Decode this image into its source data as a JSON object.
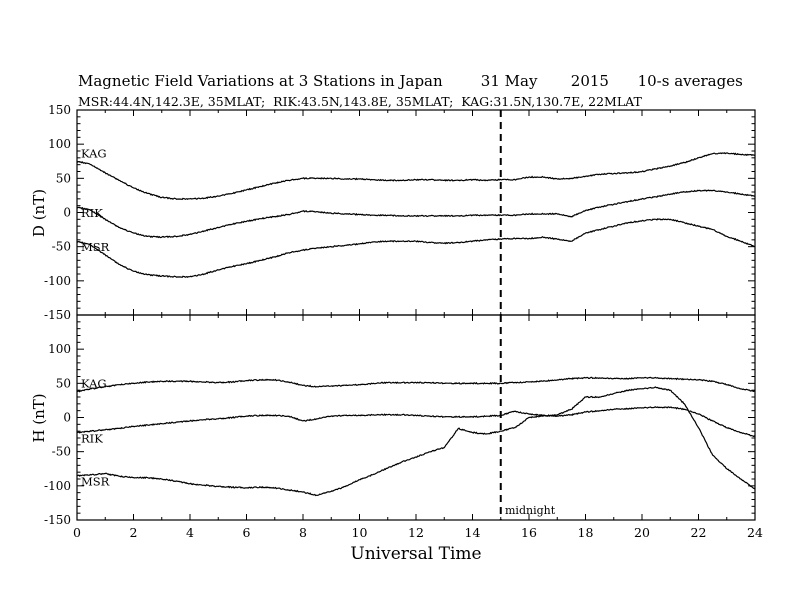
{
  "title": "Magnetic Field Variations at 3 Stations in Japan        31 May       2015      10-s averages",
  "subtitle": "MSR:44.4N,142.3E, 35MLAT;  RIK:43.5N,143.8E, 35MLAT;  KAG:31.5N,130.7E, 22MLAT",
  "chart_data": [
    {
      "type": "line",
      "ylabel": "D (nT)",
      "xlabel": "",
      "xlim": [
        0,
        24
      ],
      "ylim": [
        -150,
        150
      ],
      "yticks": [
        150,
        100,
        50,
        0,
        -50,
        -100,
        -150
      ],
      "series": [
        {
          "name": "KAG",
          "x": [
            0,
            0.5,
            1,
            1.5,
            2,
            2.5,
            3,
            3.5,
            4,
            4.5,
            5,
            5.5,
            6,
            6.5,
            7,
            7.5,
            8,
            8.5,
            9,
            9.5,
            10,
            10.5,
            11,
            11.5,
            12,
            12.5,
            13,
            13.5,
            14,
            14.5,
            15,
            15.5,
            16,
            16.5,
            17,
            17.5,
            18,
            18.5,
            19,
            19.5,
            20,
            20.5,
            21,
            21.5,
            22,
            22.5,
            23,
            23.5,
            24
          ],
          "y": [
            75,
            70,
            58,
            47,
            36,
            28,
            22,
            20,
            20,
            21,
            24,
            28,
            33,
            38,
            43,
            47,
            50,
            50,
            50,
            49,
            49,
            48,
            47,
            47,
            48,
            48,
            47,
            47,
            48,
            47,
            48,
            48,
            52,
            52,
            49,
            50,
            53,
            56,
            57,
            58,
            60,
            64,
            68,
            73,
            80,
            86,
            87,
            85,
            84
          ]
        },
        {
          "name": "RIK",
          "x": [
            0,
            0.5,
            1,
            1.5,
            2,
            2.5,
            3,
            3.5,
            4,
            4.5,
            5,
            5.5,
            6,
            6.5,
            7,
            7.5,
            8,
            8.5,
            9,
            9.5,
            10,
            10.5,
            11,
            11.5,
            12,
            12.5,
            13,
            13.5,
            14,
            14.5,
            15,
            15.5,
            16,
            16.5,
            17,
            17.5,
            18,
            18.5,
            19,
            19.5,
            20,
            20.5,
            21,
            21.5,
            22,
            22.5,
            23,
            23.5,
            24
          ],
          "y": [
            8,
            3,
            -10,
            -22,
            -30,
            -35,
            -36,
            -35,
            -32,
            -27,
            -22,
            -17,
            -13,
            -9,
            -6,
            -3,
            2,
            1,
            -1,
            -2,
            -3,
            -4,
            -4,
            -5,
            -5,
            -5,
            -5,
            -5,
            -4,
            -4,
            -4,
            -4,
            -2,
            -2,
            -2,
            -6,
            3,
            8,
            12,
            16,
            20,
            23,
            27,
            30,
            32,
            32,
            30,
            27,
            24
          ]
        },
        {
          "name": "MSR",
          "x": [
            0,
            0.5,
            1,
            1.5,
            2,
            2.5,
            3,
            3.5,
            4,
            4.5,
            5,
            5.5,
            6,
            6.5,
            7,
            7.5,
            8,
            8.5,
            9,
            9.5,
            10,
            10.5,
            11,
            11.5,
            12,
            12.5,
            13,
            13.5,
            14,
            14.5,
            15,
            15.5,
            16,
            16.5,
            17,
            17.5,
            18,
            18.5,
            19,
            19.5,
            20,
            20.5,
            21,
            21.5,
            22,
            22.5,
            23,
            23.5,
            24
          ],
          "y": [
            -42,
            -48,
            -62,
            -76,
            -86,
            -91,
            -93,
            -94,
            -94,
            -90,
            -84,
            -79,
            -75,
            -70,
            -65,
            -59,
            -55,
            -52,
            -50,
            -48,
            -46,
            -43,
            -42,
            -42,
            -42,
            -44,
            -45,
            -44,
            -42,
            -40,
            -39,
            -38,
            -38,
            -36,
            -39,
            -42,
            -30,
            -25,
            -20,
            -15,
            -12,
            -10,
            -10,
            -15,
            -20,
            -25,
            -35,
            -42,
            -50
          ]
        }
      ]
    },
    {
      "type": "line",
      "ylabel": "H (nT)",
      "xlabel": "Universal Time",
      "xlim": [
        0,
        24
      ],
      "ylim": [
        -150,
        150
      ],
      "yticks": [
        100,
        50,
        0,
        -50,
        -100,
        -150
      ],
      "xticks": [
        0,
        2,
        4,
        6,
        8,
        10,
        12,
        14,
        16,
        18,
        20,
        22,
        24
      ],
      "annotation": "midnight",
      "annotation_x": 15,
      "series": [
        {
          "name": "KAG",
          "x": [
            0,
            0.5,
            1,
            1.5,
            2,
            2.5,
            3,
            3.5,
            4,
            4.5,
            5,
            5.5,
            6,
            6.5,
            7,
            7.5,
            8,
            8.5,
            9,
            9.5,
            10,
            10.5,
            11,
            11.5,
            12,
            12.5,
            13,
            13.5,
            14,
            14.5,
            15,
            15.5,
            16,
            16.5,
            17,
            17.5,
            18,
            18.5,
            19,
            19.5,
            20,
            20.5,
            21,
            21.5,
            22,
            22.5,
            23,
            23.5,
            24
          ],
          "y": [
            38,
            42,
            45,
            48,
            50,
            52,
            53,
            53,
            53,
            52,
            51,
            52,
            54,
            55,
            55,
            52,
            47,
            45,
            46,
            47,
            48,
            50,
            51,
            51,
            51,
            51,
            50,
            50,
            50,
            50,
            50,
            51,
            52,
            53,
            55,
            57,
            58,
            58,
            57,
            57,
            58,
            58,
            57,
            56,
            55,
            53,
            48,
            42,
            38
          ]
        },
        {
          "name": "RIK",
          "x": [
            0,
            0.5,
            1,
            1.5,
            2,
            2.5,
            3,
            3.5,
            4,
            4.5,
            5,
            5.5,
            6,
            6.5,
            7,
            7.5,
            8,
            8.5,
            9,
            9.5,
            10,
            10.5,
            11,
            11.5,
            12,
            12.5,
            13,
            13.5,
            14,
            14.5,
            15,
            15.5,
            16,
            16.5,
            17,
            17.5,
            18,
            18.5,
            19,
            19.5,
            20,
            20.5,
            21,
            21.5,
            22,
            22.5,
            23,
            23.5,
            24
          ],
          "y": [
            -22,
            -20,
            -18,
            -16,
            -13,
            -11,
            -9,
            -7,
            -5,
            -3,
            -2,
            0,
            2,
            3,
            3,
            2,
            -5,
            -2,
            2,
            3,
            3,
            4,
            4,
            4,
            3,
            2,
            1,
            1,
            1,
            2,
            3,
            9,
            5,
            3,
            2,
            4,
            8,
            10,
            12,
            13,
            14,
            15,
            15,
            12,
            5,
            -5,
            -15,
            -22,
            -28
          ]
        },
        {
          "name": "MSR",
          "x": [
            0,
            0.5,
            1,
            1.5,
            2,
            2.5,
            3,
            3.5,
            4,
            4.5,
            5,
            5.5,
            6,
            6.5,
            7,
            7.5,
            8,
            8.5,
            9,
            9.5,
            10,
            10.5,
            11,
            11.5,
            12,
            12.5,
            13,
            13.5,
            14,
            14.5,
            15,
            15.5,
            16,
            16.5,
            17,
            17.5,
            18,
            18.5,
            19,
            19.5,
            20,
            20.5,
            21,
            21.5,
            22,
            22.5,
            23,
            23.5,
            24
          ],
          "y": [
            -85,
            -84,
            -82,
            -86,
            -88,
            -88,
            -90,
            -93,
            -97,
            -99,
            -101,
            -102,
            -103,
            -102,
            -103,
            -106,
            -109,
            -114,
            -108,
            -101,
            -91,
            -83,
            -74,
            -65,
            -58,
            -50,
            -44,
            -16,
            -22,
            -24,
            -20,
            -15,
            0,
            2,
            4,
            12,
            30,
            30,
            35,
            40,
            42,
            44,
            40,
            20,
            -15,
            -55,
            -75,
            -90,
            -105
          ]
        }
      ]
    }
  ]
}
